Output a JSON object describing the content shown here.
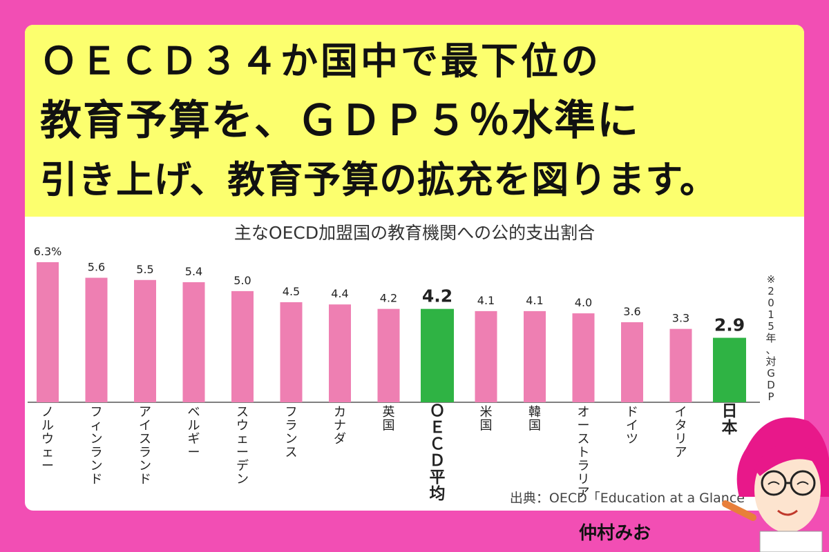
{
  "headline": {
    "line1": "ＯＥＣＤ３４か国中で最下位の",
    "line2": "教育予算を、ＧＤＰ５％水準に",
    "line3": "引き上げ、教育予算の拡充を図ります。"
  },
  "chart_data": {
    "type": "bar",
    "title": "主なOECD加盟国の教育機関への公的支出割合",
    "categories": [
      "ノルウェー",
      "フィンランド",
      "アイスランド",
      "ベルギー",
      "スウェーデン",
      "フランス",
      "カナダ",
      "英国",
      "ＯＥＣＤ平均",
      "米国",
      "韓国",
      "オーストラリア",
      "ドイツ",
      "イタリア",
      "日本"
    ],
    "values": [
      6.3,
      5.6,
      5.5,
      5.4,
      5.0,
      4.5,
      4.4,
      4.2,
      4.2,
      4.1,
      4.1,
      4.0,
      3.6,
      3.3,
      2.9
    ],
    "value_labels": [
      "6.3%",
      "5.6",
      "5.5",
      "5.4",
      "5.0",
      "4.5",
      "4.4",
      "4.2",
      "4.2",
      "4.1",
      "4.1",
      "4.0",
      "3.6",
      "3.3",
      "2.9"
    ],
    "highlighted": [
      false,
      false,
      false,
      false,
      false,
      false,
      false,
      false,
      true,
      false,
      false,
      false,
      false,
      false,
      true
    ],
    "colors": {
      "normal": "#ee7fb2",
      "highlight": "#2fb344"
    },
    "ylim": [
      0,
      6.3
    ],
    "note": "※2015年、対GDP",
    "source": "出典：OECD「Education at a Glance"
  },
  "author": "仲村みお"
}
